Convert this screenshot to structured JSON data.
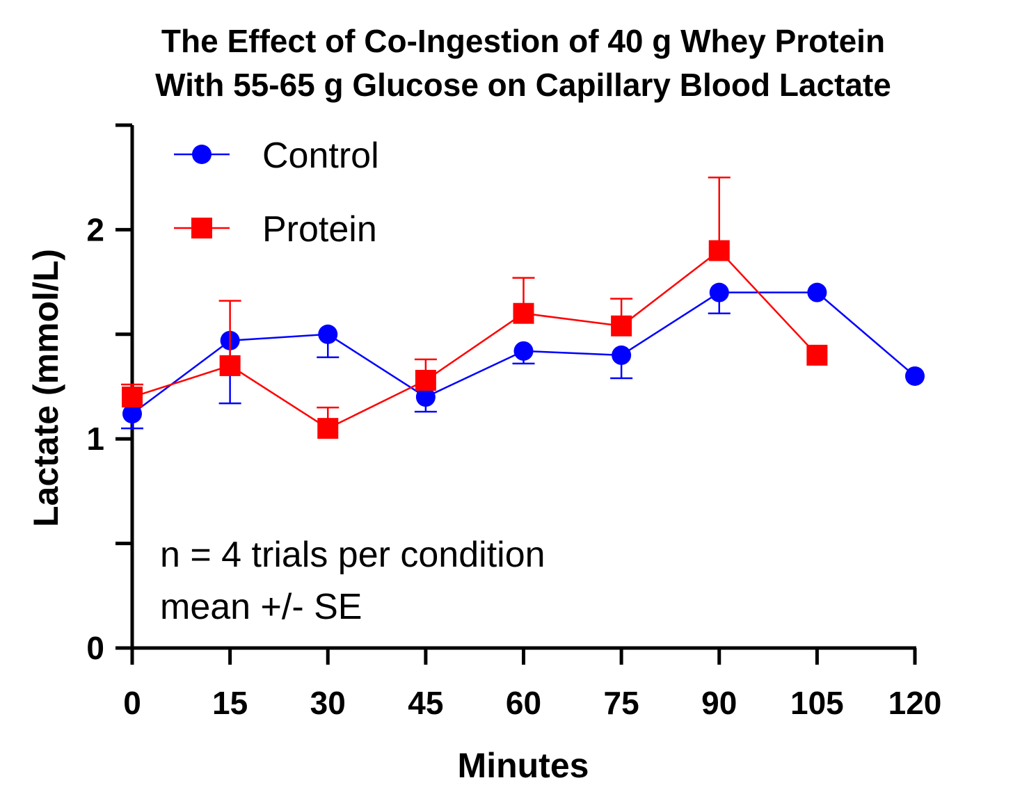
{
  "chart_data": {
    "type": "line",
    "title": "The Effect of Co-Ingestion of 40 g Whey Protein",
    "subtitle": "With 55-65 g Glucose on Capillary Blood Lactate",
    "xlabel": "Minutes",
    "ylabel": "Lactate (mmol/L)",
    "xlim": [
      0,
      120
    ],
    "ylim": [
      0,
      2.5
    ],
    "x_ticks": [
      0,
      15,
      30,
      45,
      60,
      75,
      90,
      105,
      120
    ],
    "y_ticks": [
      0,
      0.5,
      1,
      1.5,
      2,
      2.5
    ],
    "y_tick_labels": [
      "0",
      "",
      "1",
      "",
      "2",
      ""
    ],
    "grid": false,
    "legend_position": "top-left",
    "notes": [
      "n = 4 trials per condition",
      "mean +/- SE"
    ],
    "series": [
      {
        "name": "Control",
        "color": "#0000ff",
        "marker": "circle",
        "x": [
          0,
          15,
          30,
          45,
          60,
          75,
          90,
          105,
          120
        ],
        "y": [
          1.12,
          1.47,
          1.5,
          1.2,
          1.42,
          1.4,
          1.7,
          1.7,
          1.3
        ],
        "error": [
          0.07,
          0.3,
          0.11,
          0.07,
          0.06,
          0.11,
          0.1,
          null,
          null
        ],
        "error_direction": [
          "down",
          "down",
          "down",
          "down",
          "down",
          "down",
          "down",
          null,
          null
        ]
      },
      {
        "name": "Protein",
        "color": "#ff0000",
        "marker": "square",
        "x": [
          0,
          15,
          30,
          45,
          60,
          75,
          90,
          105
        ],
        "y": [
          1.2,
          1.35,
          1.05,
          1.28,
          1.6,
          1.54,
          1.9,
          1.4
        ],
        "error": [
          0.06,
          0.31,
          0.1,
          0.1,
          0.17,
          0.13,
          0.35,
          null
        ],
        "error_direction": [
          "up",
          "up",
          "up",
          "up",
          "up",
          "up",
          "up",
          null
        ]
      }
    ]
  }
}
